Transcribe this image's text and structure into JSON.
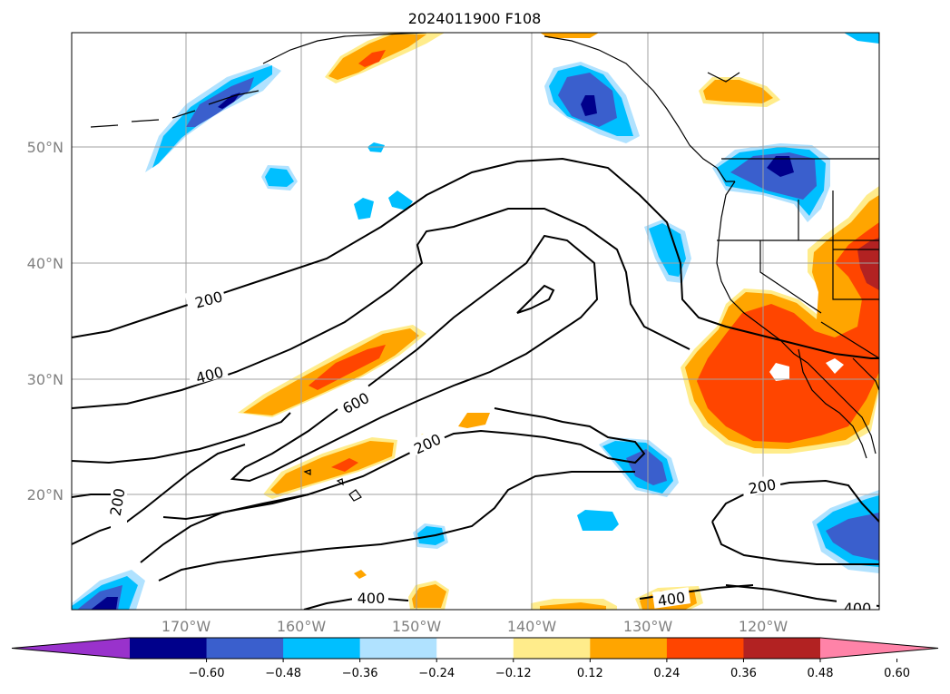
{
  "title": "2024011900 F108",
  "lat_labels": [
    "50°N",
    "40°N",
    "30°N",
    "20°N"
  ],
  "lon_labels": [
    "170°W",
    "160°W",
    "150°W",
    "140°W",
    "130°W",
    "120°W"
  ],
  "colorbar": {
    "ticks": [
      "−0.60",
      "−0.48",
      "−0.36",
      "−0.24",
      "−0.12",
      "0.12",
      "0.24",
      "0.36",
      "0.48",
      "0.60"
    ],
    "colors": [
      "#9932cc",
      "#00008b",
      "#3a5fcd",
      "#00bfff",
      "#b0e2ff",
      "#ffffff",
      "#ffec8b",
      "#ffa500",
      "#ff4500",
      "#b22222",
      "#ff83a8"
    ]
  },
  "contour_labels": [
    "200",
    "400",
    "600",
    "200",
    "200",
    "200",
    "400",
    "400",
    "400"
  ],
  "contour_levels": [
    200,
    400,
    600
  ],
  "fill_colors": {
    "neg_light": "#b0e2ff",
    "neg_1": "#00bfff",
    "neg_2": "#3a5fcd",
    "neg_3": "#00008b",
    "pos_light": "#ffec8b",
    "pos_1": "#ffa500",
    "pos_2": "#ff4500",
    "pos_3": "#b22222"
  }
}
